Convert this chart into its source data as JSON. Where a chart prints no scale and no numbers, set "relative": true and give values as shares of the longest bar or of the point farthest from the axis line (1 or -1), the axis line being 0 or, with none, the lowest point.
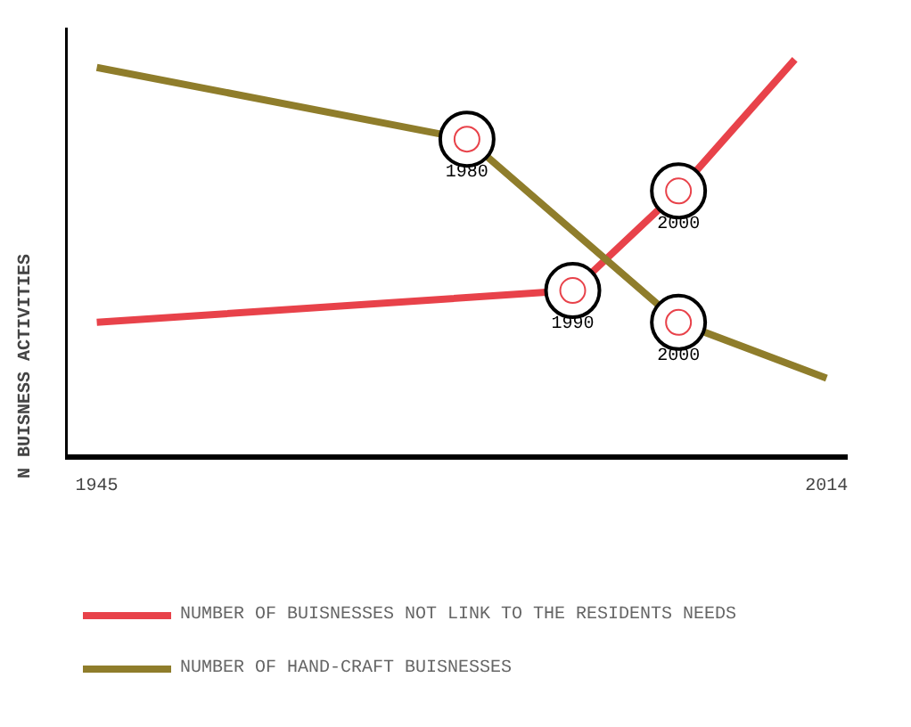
{
  "chart_data": {
    "type": "line",
    "ylabel": "N BUISNESS ACTIVITIES",
    "relative": true,
    "xlim": [
      1942,
      2016
    ],
    "xticks": [
      1945,
      2014
    ],
    "legend": "bottom",
    "line_style": "solid",
    "series": [
      {
        "name": "NUMBER OF BUISNESSES NOT LINK TO THE RESIDENTS NEEDS",
        "color": "#e8424a",
        "x": [
          1945,
          1990,
          2000,
          2011
        ],
        "values": [
          0.34,
          0.42,
          0.67,
          1
        ]
      },
      {
        "name": "NUMBER OF HAND-CRAFT BUISNESSES",
        "color": "#8f7d2b",
        "x": [
          1945,
          1980,
          2000,
          2014
        ],
        "values": [
          0.98,
          0.8,
          0.34,
          0.2
        ]
      }
    ],
    "annotations": [
      {
        "text": "1980",
        "x": 1980,
        "y": 0.8
      },
      {
        "text": "1990",
        "x": 1990,
        "y": 0.42
      },
      {
        "text": "2000",
        "x": 2000,
        "y": 0.67
      },
      {
        "text": "2000",
        "x": 2000,
        "y": 0.34
      }
    ]
  }
}
